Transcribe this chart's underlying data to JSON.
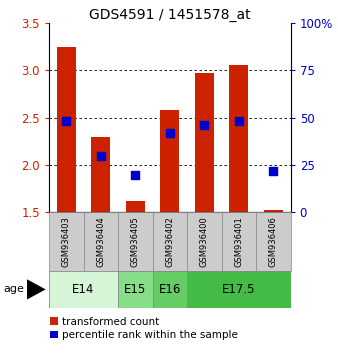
{
  "title": "GDS4591 / 1451578_at",
  "samples": [
    "GSM936403",
    "GSM936404",
    "GSM936405",
    "GSM936402",
    "GSM936400",
    "GSM936401",
    "GSM936406"
  ],
  "red_values": [
    3.25,
    2.3,
    1.62,
    2.58,
    2.97,
    3.06,
    1.53
  ],
  "blue_values": [
    48,
    30,
    20,
    42,
    46,
    48,
    22
  ],
  "ylim_left": [
    1.5,
    3.5
  ],
  "ylim_right": [
    0,
    100
  ],
  "yticks_left": [
    1.5,
    2.0,
    2.5,
    3.0,
    3.5
  ],
  "yticks_right": [
    0,
    25,
    50,
    75,
    100
  ],
  "ytick_labels_right": [
    "0",
    "25",
    "50",
    "75",
    "100%"
  ],
  "gridlines": [
    2.0,
    2.5,
    3.0
  ],
  "age_groups": [
    {
      "label": "E14",
      "start": 0,
      "end": 2,
      "color": "#d6f5d6"
    },
    {
      "label": "E15",
      "start": 2,
      "end": 3,
      "color": "#88dd88"
    },
    {
      "label": "E16",
      "start": 3,
      "end": 4,
      "color": "#66cc66"
    },
    {
      "label": "E17.5",
      "start": 4,
      "end": 7,
      "color": "#44bb44"
    }
  ],
  "bar_color": "#cc2200",
  "dot_color": "#0000cc",
  "bar_bottom": 1.5,
  "bar_width": 0.55,
  "dot_size": 32,
  "legend_red": "transformed count",
  "legend_blue": "percentile rank within the sample",
  "left_color": "#cc2200",
  "right_color": "#0000cc",
  "sample_box_color": "#cccccc",
  "sample_box_edge": "#888888"
}
